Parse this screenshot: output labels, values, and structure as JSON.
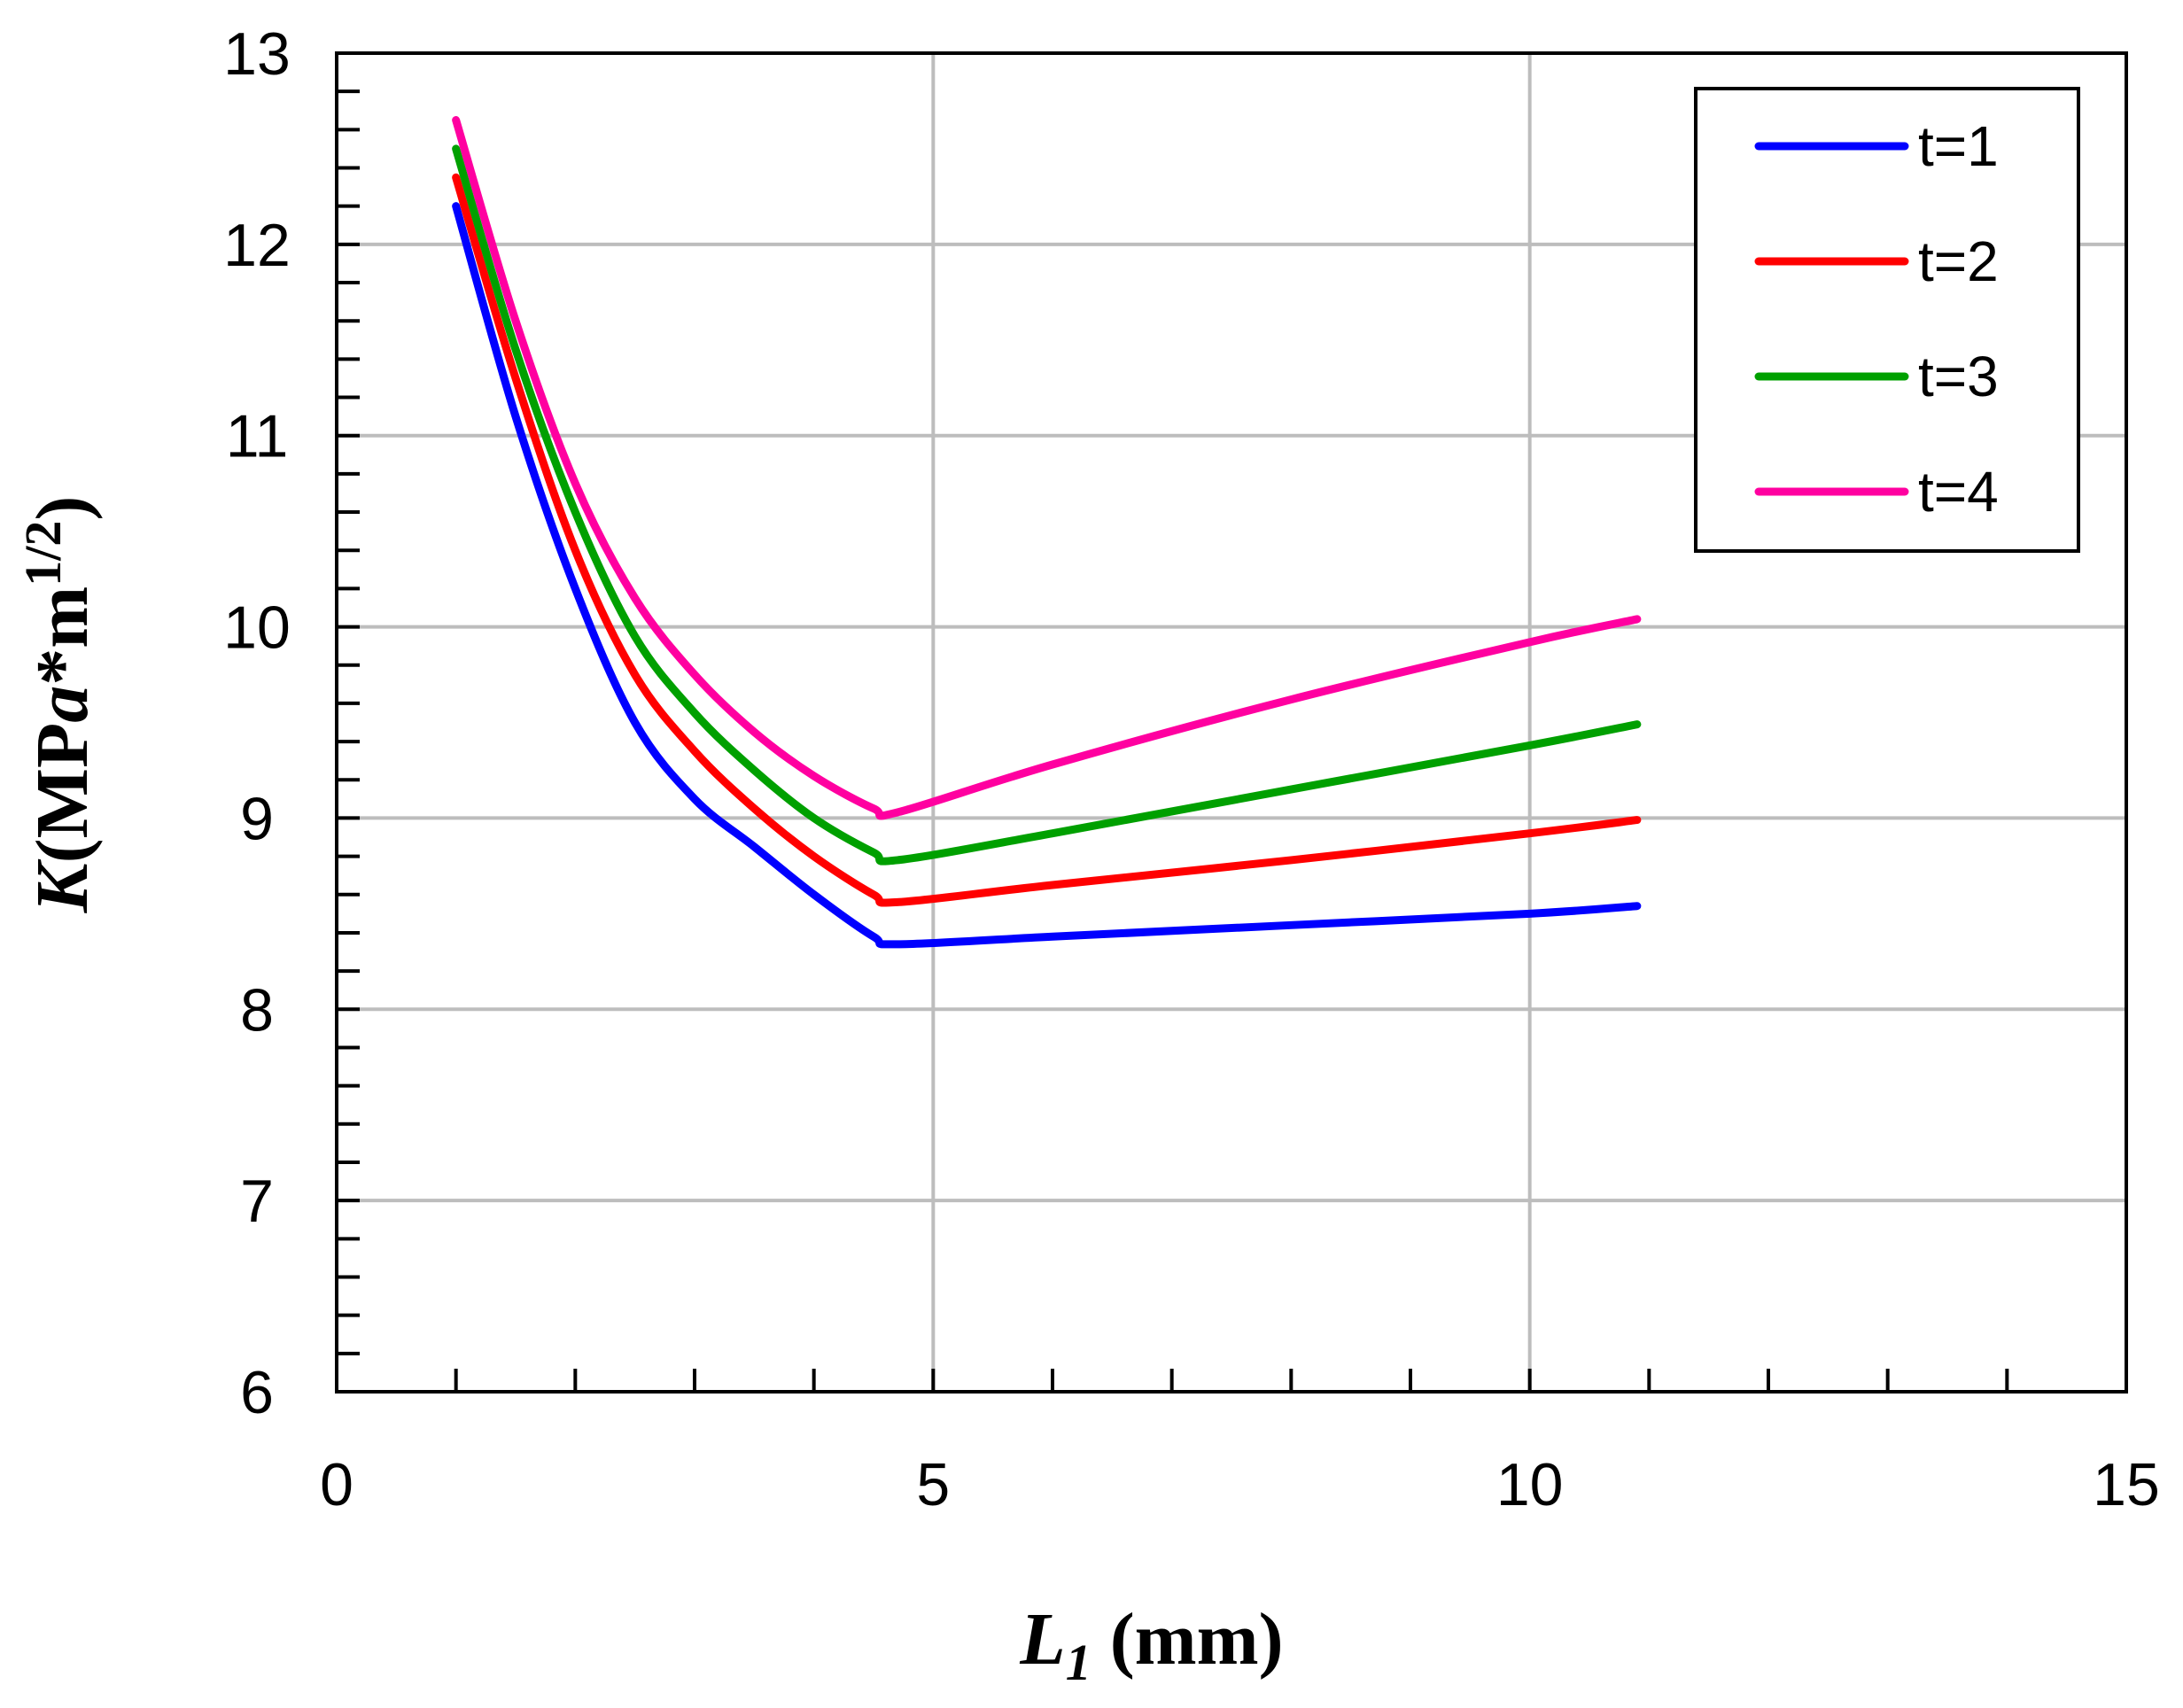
{
  "chart_data": {
    "type": "line",
    "title": "",
    "xlabel": {
      "main": "L",
      "subscript": "1",
      "unit": " (mm)"
    },
    "ylabel": {
      "prefix": "K(MP",
      "italic": "a",
      "middle": "*m",
      "superscript": "1/2",
      "suffix": ")"
    },
    "xlim": [
      0,
      15
    ],
    "ylim": [
      6,
      13
    ],
    "xticks": [
      0,
      5,
      10,
      15
    ],
    "yticks": [
      6,
      7,
      8,
      9,
      10,
      11,
      12,
      13
    ],
    "x_minor_step": 1,
    "y_minor_step": 0.2,
    "grid": true,
    "legend_position": "top-right",
    "series": [
      {
        "name": "t=1",
        "color": "#0000FF",
        "x": [
          1.0,
          1.5,
          2.0,
          2.5,
          3.0,
          3.5,
          4.0,
          4.5,
          4.7,
          6.0,
          8.0,
          10.0,
          10.9
        ],
        "y": [
          12.2,
          11.1,
          10.2,
          9.5,
          9.1,
          8.85,
          8.6,
          8.38,
          8.34,
          8.38,
          8.44,
          8.5,
          8.54
        ]
      },
      {
        "name": "t=2",
        "color": "#FF0000",
        "x": [
          1.0,
          1.5,
          2.0,
          2.5,
          3.0,
          3.5,
          4.0,
          4.5,
          4.7,
          6.0,
          8.0,
          10.0,
          10.9
        ],
        "y": [
          12.35,
          11.3,
          10.4,
          9.75,
          9.35,
          9.05,
          8.8,
          8.6,
          8.56,
          8.65,
          8.78,
          8.92,
          8.99
        ]
      },
      {
        "name": "t=3",
        "color": "#00A000",
        "x": [
          1.0,
          1.5,
          2.0,
          2.5,
          3.0,
          3.5,
          4.0,
          4.5,
          4.7,
          6.0,
          8.0,
          10.0,
          10.9
        ],
        "y": [
          12.5,
          11.45,
          10.6,
          9.95,
          9.55,
          9.25,
          9.0,
          8.82,
          8.78,
          8.92,
          9.15,
          9.38,
          9.49
        ]
      },
      {
        "name": "t=4",
        "color": "#FF00A0",
        "x": [
          1.0,
          1.5,
          2.0,
          2.5,
          3.0,
          3.5,
          4.0,
          4.5,
          4.7,
          6.0,
          8.0,
          10.0,
          10.9
        ],
        "y": [
          12.65,
          11.6,
          10.75,
          10.15,
          9.75,
          9.45,
          9.22,
          9.05,
          9.03,
          9.28,
          9.62,
          9.92,
          10.04
        ]
      }
    ]
  }
}
